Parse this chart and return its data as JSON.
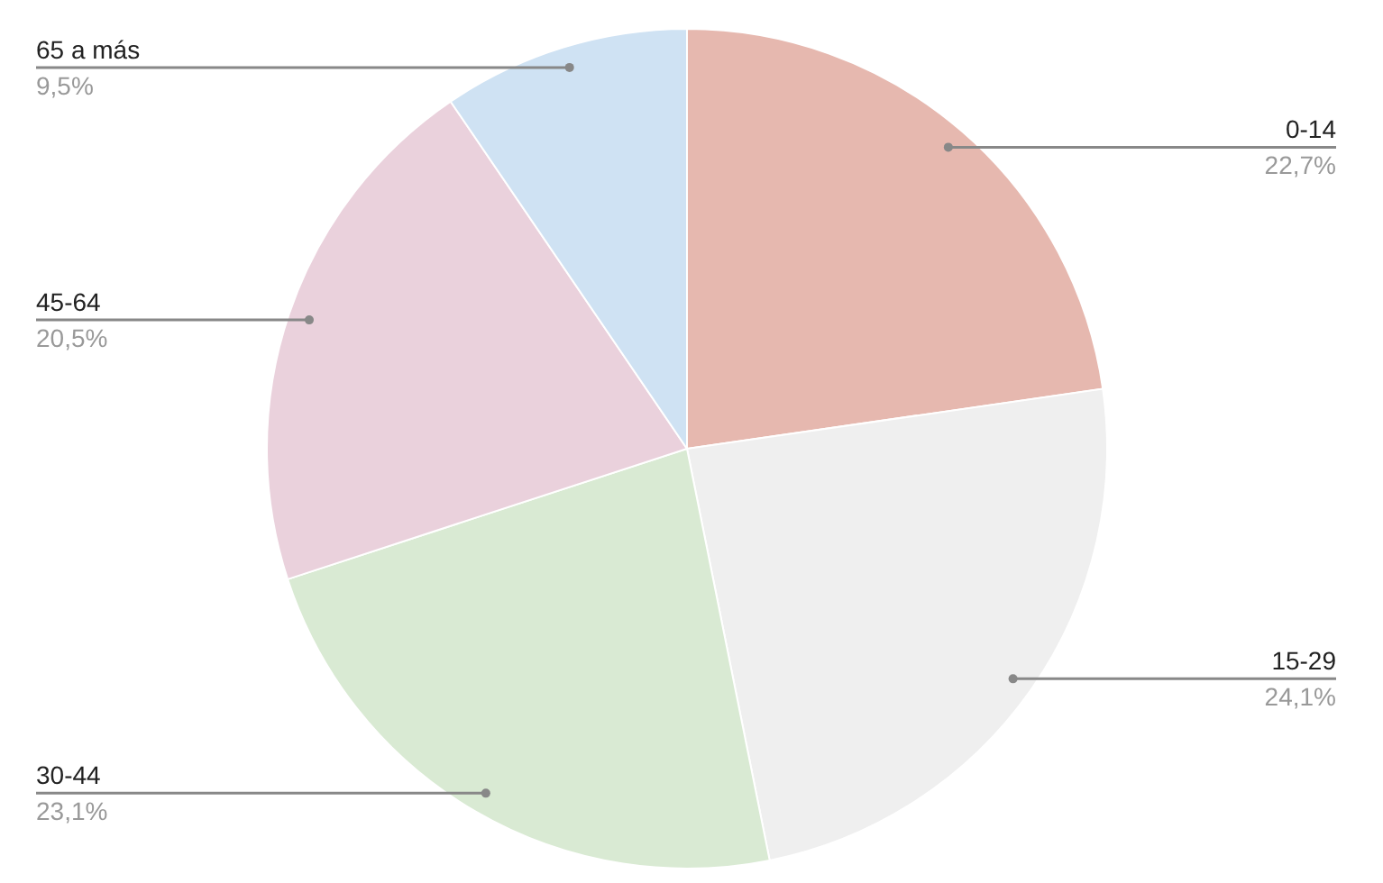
{
  "chart_data": {
    "type": "pie",
    "categories": [
      "0-14",
      "15-29",
      "30-44",
      "45-64",
      "65 a más"
    ],
    "values": [
      22.7,
      24.1,
      23.1,
      20.5,
      9.5
    ],
    "colors": [
      "#e6b8af",
      "#efefef",
      "#d9ead3",
      "#ead1dc",
      "#cfe2f3"
    ],
    "value_labels": [
      "22,7%",
      "24,1%",
      "23,1%",
      "20,5%",
      "9,5%"
    ]
  }
}
